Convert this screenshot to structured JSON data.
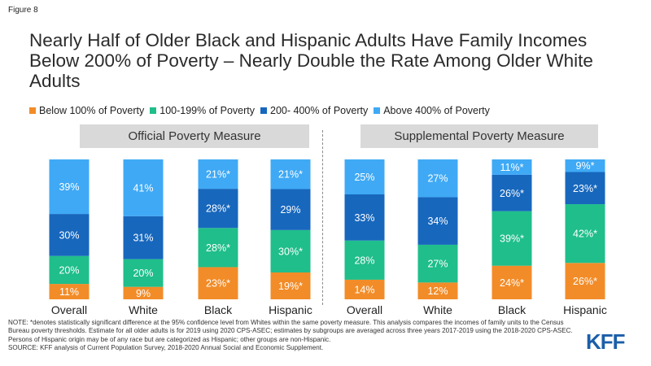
{
  "figure_label": "Figure 8",
  "title": "Nearly Half of Older Black and Hispanic Adults Have Family Incomes Below 200% of Poverty – Nearly Double the Rate Among Older White Adults",
  "legend": [
    {
      "label": "Below 100% of Poverty",
      "color": "#f28c28"
    },
    {
      "label": "100-199% of Poverty",
      "color": "#1fbe8a"
    },
    {
      "label": "200- 400% of Poverty",
      "color": "#1767bd"
    },
    {
      "label": "Above 400% of Poverty",
      "color": "#3fa9f5"
    }
  ],
  "panels": {
    "official": "Official Poverty Measure",
    "supplemental": "Supplemental Poverty Measure"
  },
  "chart_data": {
    "type": "bar",
    "stacked": true,
    "ylim": [
      0,
      100
    ],
    "panels": [
      {
        "name": "Official Poverty Measure",
        "categories": [
          "Overall",
          "White",
          "Black",
          "Hispanic"
        ],
        "series": [
          {
            "name": "Below 100% of Poverty",
            "values": [
              11,
              9,
              23,
              19
            ],
            "labels": [
              "11%",
              "9%",
              "23%*",
              "19%*"
            ]
          },
          {
            "name": "100-199% of Poverty",
            "values": [
              20,
              20,
              28,
              30
            ],
            "labels": [
              "20%",
              "20%",
              "28%*",
              "30%*"
            ]
          },
          {
            "name": "200- 400% of Poverty",
            "values": [
              30,
              31,
              28,
              29
            ],
            "labels": [
              "30%",
              "31%",
              "28%*",
              "29%"
            ]
          },
          {
            "name": "Above 400% of Poverty",
            "values": [
              39,
              41,
              21,
              21
            ],
            "labels": [
              "39%",
              "41%",
              "21%*",
              "21%*"
            ]
          }
        ]
      },
      {
        "name": "Supplemental Poverty Measure",
        "categories": [
          "Overall",
          "White",
          "Black",
          "Hispanic"
        ],
        "series": [
          {
            "name": "Below 100% of Poverty",
            "values": [
              14,
              12,
              24,
              26
            ],
            "labels": [
              "14%",
              "12%",
              "24%*",
              "26%*"
            ]
          },
          {
            "name": "100-199% of Poverty",
            "values": [
              28,
              27,
              39,
              42
            ],
            "labels": [
              "28%",
              "27%",
              "39%*",
              "42%*"
            ]
          },
          {
            "name": "200- 400% of Poverty",
            "values": [
              33,
              34,
              26,
              23
            ],
            "labels": [
              "33%",
              "34%",
              "26%*",
              "23%*"
            ]
          },
          {
            "name": "Above 400% of Poverty",
            "values": [
              25,
              27,
              11,
              9
            ],
            "labels": [
              "25%",
              "27%",
              "11%*",
              "9%*"
            ]
          }
        ]
      }
    ]
  },
  "notes": {
    "note": "NOTE: *denotes statistically significant difference at the 95% confidence level from Whites within the same poverty measure. This analysis compares the incomes of family units to the Census Bureau poverty thresholds. Estimate for all older adults is for 2019 using 2020 CPS-ASEC; estimates by subgroups are averaged across three years 2017-2019 using the 2018-2020 CPS-ASEC. Persons of Hispanic origin may be of any race but are categorized as Hispanic; other groups are non-Hispanic.",
    "source": "SOURCE: KFF analysis of Current Population Survey, 2018-2020 Annual Social and Economic Supplement."
  },
  "logo": "KFF"
}
